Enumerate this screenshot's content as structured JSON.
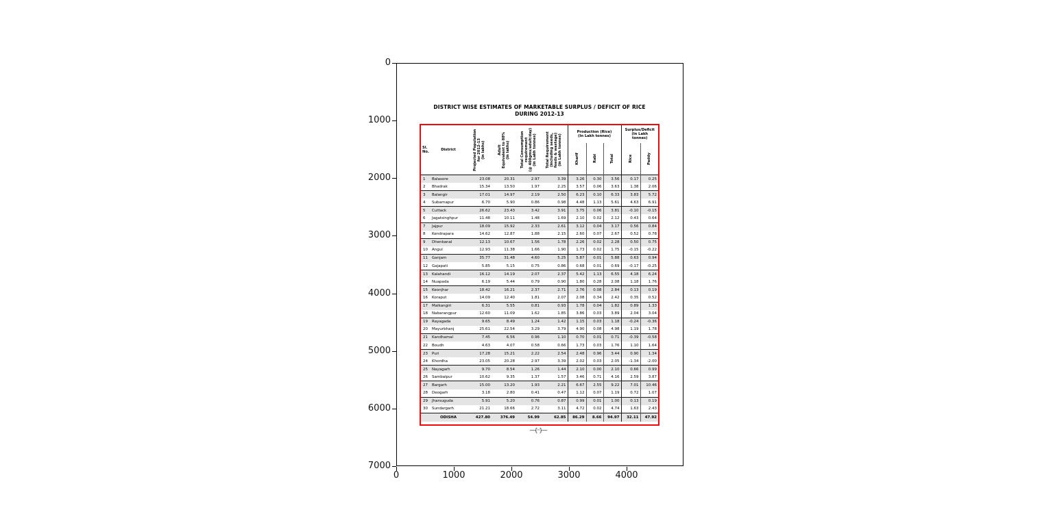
{
  "chart_data": {
    "type": "table",
    "title": "DISTRICT WISE ESTIMATES OF MARKETABLE SURPLUS / DEFICIT OF RICE",
    "subtitle": "DURING 2012-13",
    "axes": {
      "x_tick_labels": [
        "0",
        "1000",
        "2000",
        "3000",
        "4000"
      ],
      "y_tick_labels": [
        "0",
        "1000",
        "2000",
        "3000",
        "4000",
        "5000",
        "6000",
        "7000"
      ],
      "grid": "off",
      "note": "image pixel axes, y increases downward"
    },
    "columns": [
      "Sl. No.",
      "District",
      "Projected Population for 2012-13 (in lakhs)",
      "Adult Equivalent to 88% (in lakhs)",
      "Total Consumption requirement (@ 400gms/adult/day) (in Lakh tonnes)",
      "Total Requirement (including seeds, feeds & wastage) (in Lakh tonnes)",
      "Production (Rice) Kharif",
      "Production (Rice) Rabi",
      "Production (Rice) Total",
      "Surplus/Deficit Rice",
      "Surplus/Deficit Paddy"
    ],
    "rows": [
      [
        "1",
        "Balasore",
        "23.08",
        "20.31",
        "2.97",
        "3.39",
        "3.26",
        "0.30",
        "3.56",
        "0.17",
        "0.25"
      ],
      [
        "2",
        "Bhadrak",
        "15.34",
        "13.50",
        "1.97",
        "2.25",
        "3.57",
        "0.06",
        "3.63",
        "1.38",
        "2.06"
      ],
      [
        "3",
        "Balangir",
        "17.01",
        "14.97",
        "2.19",
        "2.50",
        "6.23",
        "0.10",
        "6.33",
        "3.83",
        "5.72"
      ],
      [
        "4",
        "Subarnapur",
        "6.70",
        "5.90",
        "0.86",
        "0.98",
        "4.48",
        "1.13",
        "5.61",
        "4.63",
        "6.91"
      ],
      [
        "5",
        "Cuttack",
        "26.62",
        "23.43",
        "3.42",
        "3.91",
        "3.75",
        "0.06",
        "3.81",
        "-0.10",
        "-0.15"
      ],
      [
        "6",
        "Jagatsinghpur",
        "11.48",
        "10.11",
        "1.48",
        "1.69",
        "2.10",
        "0.02",
        "2.12",
        "0.43",
        "0.64"
      ],
      [
        "7",
        "Jajpur",
        "18.09",
        "15.92",
        "2.33",
        "2.61",
        "3.12",
        "0.04",
        "3.17",
        "0.56",
        "0.84"
      ],
      [
        "8",
        "Kendrapara",
        "14.62",
        "12.87",
        "1.88",
        "2.15",
        "2.60",
        "0.07",
        "2.67",
        "0.52",
        "0.78"
      ],
      [
        "9",
        "Dhenkanal",
        "12.13",
        "10.67",
        "1.56",
        "1.78",
        "2.26",
        "0.02",
        "2.28",
        "0.50",
        "0.75"
      ],
      [
        "10",
        "Angul",
        "12.93",
        "11.38",
        "1.66",
        "1.90",
        "1.73",
        "0.02",
        "1.75",
        "-0.15",
        "-0.22"
      ],
      [
        "11",
        "Ganjam",
        "35.77",
        "31.48",
        "4.60",
        "5.25",
        "5.87",
        "0.01",
        "5.88",
        "0.63",
        "0.94"
      ],
      [
        "12",
        "Gajapati",
        "5.85",
        "5.15",
        "0.75",
        "0.86",
        "0.68",
        "0.01",
        "0.69",
        "-0.17",
        "-0.25"
      ],
      [
        "13",
        "Kalahandi",
        "16.12",
        "14.19",
        "2.07",
        "2.37",
        "5.42",
        "1.13",
        "6.55",
        "4.18",
        "6.24"
      ],
      [
        "14",
        "Nuapada",
        "6.19",
        "5.44",
        "0.79",
        "0.90",
        "1.80",
        "0.28",
        "2.08",
        "1.18",
        "1.76"
      ],
      [
        "15",
        "Keonjhar",
        "18.42",
        "16.21",
        "2.37",
        "2.71",
        "2.76",
        "0.08",
        "2.84",
        "0.13",
        "0.19"
      ],
      [
        "16",
        "Koraput",
        "14.09",
        "12.40",
        "1.81",
        "2.07",
        "2.08",
        "0.34",
        "2.42",
        "0.35",
        "0.52"
      ],
      [
        "17",
        "Malkangiri",
        "6.31",
        "5.55",
        "0.81",
        "0.93",
        "1.78",
        "0.04",
        "1.82",
        "0.89",
        "1.33"
      ],
      [
        "18",
        "Nabarangpur",
        "12.60",
        "11.09",
        "1.62",
        "1.85",
        "3.86",
        "0.03",
        "3.89",
        "2.04",
        "3.04"
      ],
      [
        "19",
        "Rayagada",
        "9.65",
        "8.49",
        "1.24",
        "1.42",
        "1.15",
        "0.03",
        "1.18",
        "-0.24",
        "-0.36"
      ],
      [
        "20",
        "Mayurbhanj",
        "25.61",
        "22.54",
        "3.29",
        "3.79",
        "4.90",
        "0.08",
        "4.98",
        "1.19",
        "1.78"
      ],
      [
        "21",
        "Kandhamal",
        "7.45",
        "6.56",
        "0.96",
        "1.10",
        "0.70",
        "0.01",
        "0.71",
        "-0.39",
        "-0.58"
      ],
      [
        "22",
        "Boudh",
        "4.63",
        "4.07",
        "0.58",
        "0.66",
        "1.73",
        "0.03",
        "1.76",
        "1.10",
        "1.64"
      ],
      [
        "23",
        "Puri",
        "17.28",
        "15.21",
        "2.22",
        "2.54",
        "2.48",
        "0.96",
        "3.44",
        "0.90",
        "1.34"
      ],
      [
        "24",
        "Khordha",
        "23.05",
        "20.28",
        "2.97",
        "3.39",
        "2.02",
        "0.03",
        "2.05",
        "-1.34",
        "-2.00"
      ],
      [
        "25",
        "Nayagarh",
        "9.70",
        "8.54",
        "1.26",
        "1.44",
        "2.10",
        "0.00",
        "2.10",
        "0.66",
        "0.99"
      ],
      [
        "26",
        "Sambalpur",
        "10.62",
        "9.35",
        "1.37",
        "1.57",
        "3.46",
        "0.71",
        "4.16",
        "2.59",
        "3.87"
      ],
      [
        "27",
        "Bargarh",
        "15.00",
        "13.20",
        "1.93",
        "2.21",
        "6.67",
        "2.55",
        "9.22",
        "7.01",
        "10.46"
      ],
      [
        "28",
        "Deogarh",
        "3.18",
        "2.80",
        "0.41",
        "0.47",
        "1.12",
        "0.07",
        "1.19",
        "0.72",
        "1.07"
      ],
      [
        "29",
        "Jharsuguda",
        "5.91",
        "5.20",
        "0.76",
        "0.87",
        "0.99",
        "0.01",
        "1.00",
        "0.13",
        "0.19"
      ],
      [
        "30",
        "Sundargarh",
        "21.21",
        "18.66",
        "2.72",
        "3.11",
        "4.72",
        "0.02",
        "4.74",
        "1.63",
        "2.43"
      ]
    ],
    "total_row": [
      "",
      "ODISHA",
      "427.80",
      "376.49",
      "54.99",
      "62.85",
      "86.29",
      "8.66",
      "94.97",
      "32.11",
      "47.92"
    ]
  },
  "table_headers": {
    "sl": "Sl.\nNo.",
    "district": "District",
    "pop": "Projected Population\nfor 2012-13\n(in lakhs)",
    "adult": "Adult\nEquivalent to 88%\n(in lakhs)",
    "cons": "Total Consumption\nrequirement\n(@ 400gms/adult/day)\n(in Lakh tonnes)",
    "req": "Total Requirement\n(including seeds,\nfeeds & wastage)\n(in Lakh tonnes)",
    "production_group": "Production (Rice)\n(In Lakh tonnes)",
    "kharif": "Kharif",
    "rabi": "Rabi",
    "total": "Total",
    "surplus_group": "Surplus/Deficit\n(In Lakh\ntonnes)",
    "rice": "Rice",
    "paddy": "Paddy"
  },
  "footer_mark": "—{··}—",
  "colors": {
    "table_border": "#ee0a0a",
    "row_stripe": "#e4e4e4",
    "axis": "#000000"
  }
}
